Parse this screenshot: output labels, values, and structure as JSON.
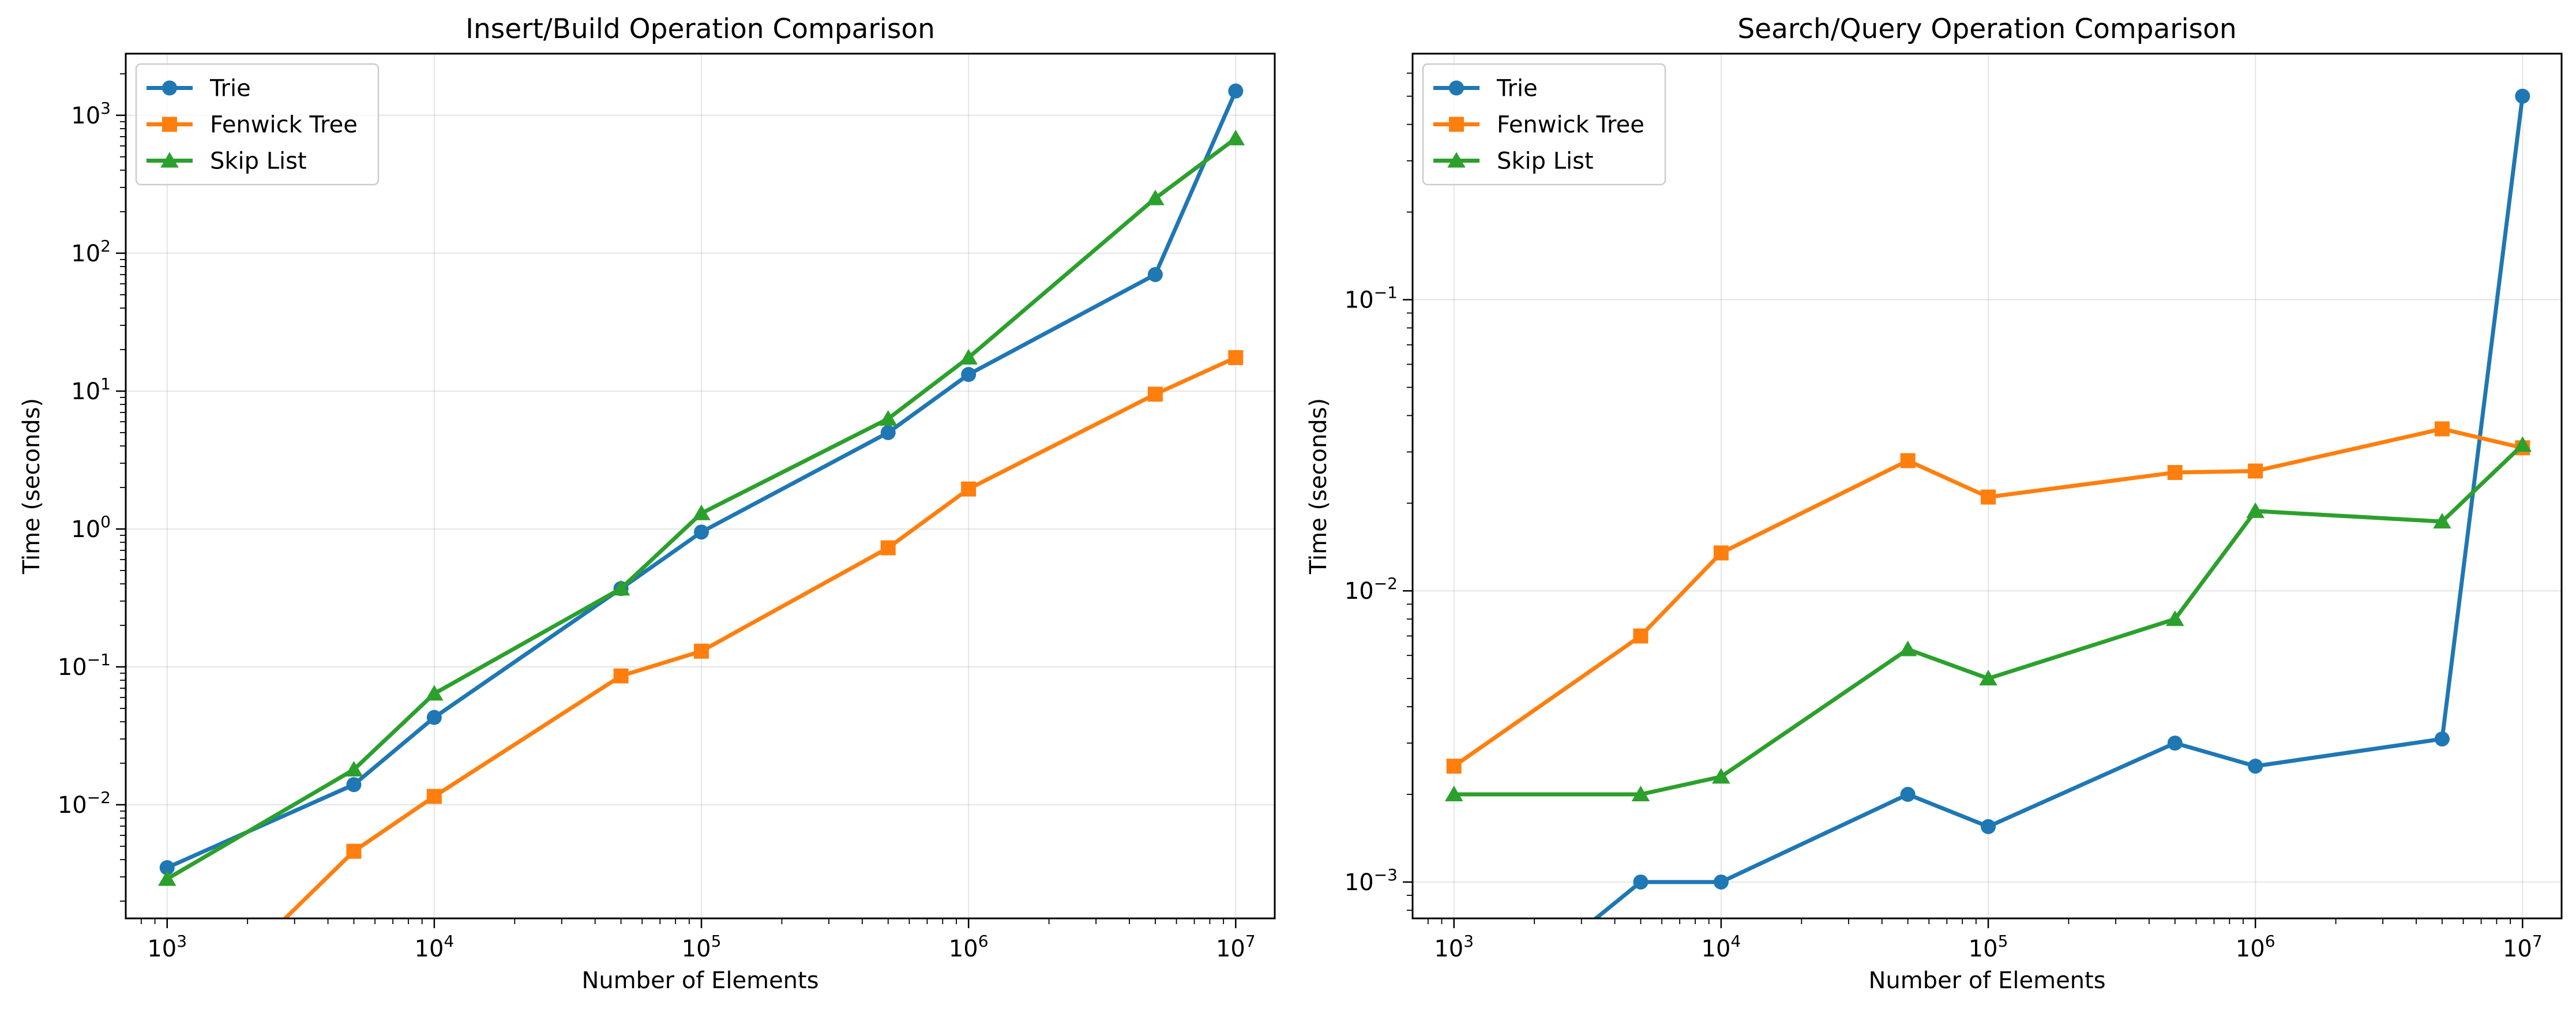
{
  "colors": {
    "Trie": "#1f77b4",
    "Fenwick Tree": "#ff7f0e",
    "Skip List": "#2ca02c"
  },
  "chart_data": [
    {
      "type": "line",
      "title": "Insert/Build Operation Comparison",
      "xlabel": "Number of Elements",
      "ylabel": "Time (seconds)",
      "xscale": "log",
      "yscale": "log",
      "xlim": [
        700,
        14000000
      ],
      "ylim": [
        0.0015,
        2800
      ],
      "x_ticks": [
        1000,
        10000,
        100000,
        1000000,
        10000000
      ],
      "x_tick_labels": [
        [
          "10",
          "3"
        ],
        [
          "10",
          "4"
        ],
        [
          "10",
          "5"
        ],
        [
          "10",
          "6"
        ],
        [
          "10",
          "7"
        ]
      ],
      "y_ticks": [
        0.01,
        0.1,
        1,
        10,
        100,
        1000
      ],
      "y_tick_labels": [
        [
          "10",
          "−2"
        ],
        [
          "10",
          "−1"
        ],
        [
          "10",
          "0"
        ],
        [
          "10",
          "1"
        ],
        [
          "10",
          "2"
        ],
        [
          "10",
          "3"
        ]
      ],
      "grid": true,
      "legend": "upper-left",
      "series": [
        {
          "name": "Trie",
          "marker": "circle",
          "x": [
            1000,
            5000,
            10000,
            50000,
            100000,
            500000,
            1000000,
            5000000,
            10000000
          ],
          "y": [
            0.0035,
            0.014,
            0.043,
            0.37,
            0.95,
            5.0,
            13.2,
            70,
            1500
          ]
        },
        {
          "name": "Fenwick Tree",
          "marker": "square",
          "x": [
            1000,
            5000,
            10000,
            50000,
            100000,
            500000,
            1000000,
            5000000,
            10000000
          ],
          "y": [
            0,
            0.0046,
            0.0115,
            0.086,
            0.13,
            0.73,
            1.95,
            9.5,
            17.5
          ]
        },
        {
          "name": "Skip List",
          "marker": "triangle",
          "x": [
            1000,
            5000,
            10000,
            50000,
            100000,
            500000,
            1000000,
            5000000,
            10000000
          ],
          "y": [
            0.0029,
            0.018,
            0.064,
            0.37,
            1.3,
            6.3,
            17.5,
            250,
            680
          ]
        }
      ]
    },
    {
      "type": "line",
      "title": "Search/Query Operation Comparison",
      "xlabel": "Number of Elements",
      "ylabel": "Time (seconds)",
      "xscale": "log",
      "yscale": "log",
      "xlim": [
        700,
        14000000
      ],
      "ylim": [
        0.00075,
        0.7
      ],
      "x_ticks": [
        1000,
        10000,
        100000,
        1000000,
        10000000
      ],
      "x_tick_labels": [
        [
          "10",
          "3"
        ],
        [
          "10",
          "4"
        ],
        [
          "10",
          "5"
        ],
        [
          "10",
          "6"
        ],
        [
          "10",
          "7"
        ]
      ],
      "y_ticks": [
        0.001,
        0.01,
        0.1
      ],
      "y_tick_labels": [
        [
          "10",
          "−3"
        ],
        [
          "10",
          "−2"
        ],
        [
          "10",
          "−1"
        ]
      ],
      "grid": true,
      "legend": "upper-left",
      "series": [
        {
          "name": "Trie",
          "marker": "circle",
          "x": [
            1000,
            5000,
            10000,
            50000,
            100000,
            500000,
            1000000,
            5000000,
            10000000
          ],
          "y": [
            0,
            0.001,
            0.001,
            0.002,
            0.00155,
            0.003,
            0.0025,
            0.0031,
            0.5
          ]
        },
        {
          "name": "Fenwick Tree",
          "marker": "square",
          "x": [
            1000,
            5000,
            10000,
            50000,
            100000,
            500000,
            1000000,
            5000000,
            10000000
          ],
          "y": [
            0.0025,
            0.007,
            0.0135,
            0.028,
            0.021,
            0.0255,
            0.0258,
            0.036,
            0.031
          ]
        },
        {
          "name": "Skip List",
          "marker": "triangle",
          "x": [
            1000,
            5000,
            10000,
            50000,
            100000,
            500000,
            1000000,
            5000000,
            10000000
          ],
          "y": [
            0.002,
            0.002,
            0.0023,
            0.0063,
            0.005,
            0.008,
            0.0188,
            0.0173,
            0.0317
          ]
        }
      ]
    }
  ]
}
